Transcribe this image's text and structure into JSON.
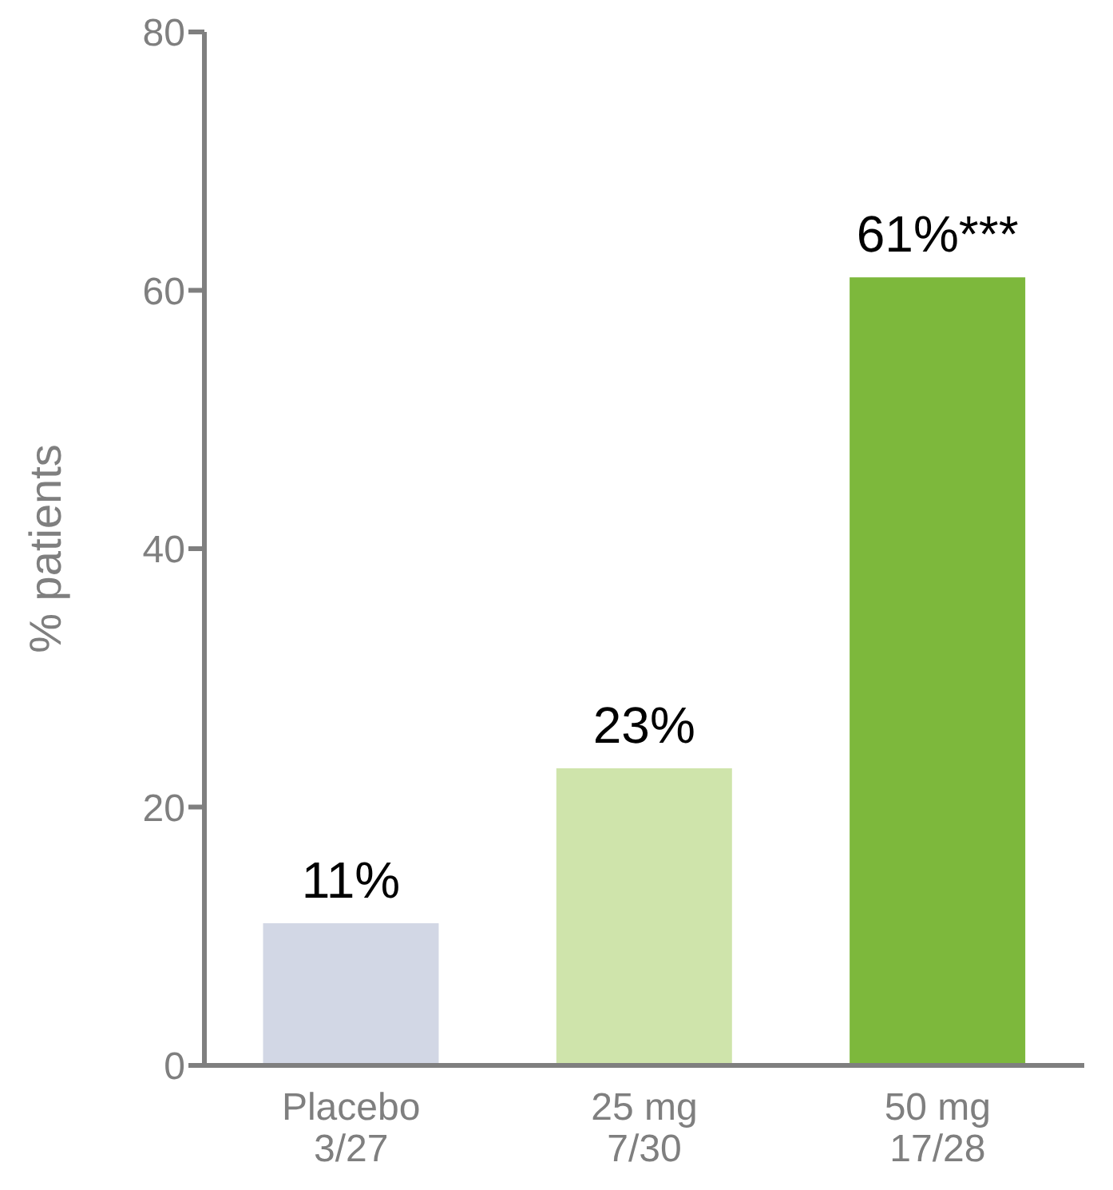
{
  "chart_data": {
    "type": "bar",
    "ylabel": "% patients",
    "categories": [
      "Placebo\n3/27",
      "25 mg\n7/30",
      "50 mg\n17/28"
    ],
    "values": [
      11,
      23,
      61
    ],
    "colors": [
      "#d2d7e5",
      "#cfe4ab",
      "#7db83c"
    ],
    "value_labels": [
      "11%",
      "23%",
      "61%***"
    ],
    "ylim": [
      0,
      80
    ],
    "yticks": [
      0,
      20,
      40,
      60,
      80
    ]
  }
}
